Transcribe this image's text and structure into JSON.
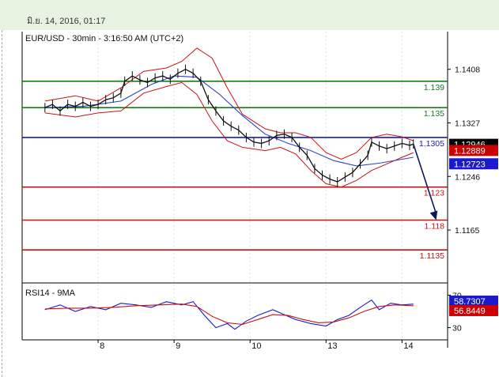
{
  "header": {
    "datestamp": "มิ.ย. 14, 2016, 01:17"
  },
  "chart_data": {
    "type": "candlestick",
    "title": "EUR/USD - 30min - 3:16:50 AM (UTC+2)",
    "price_axis": {
      "ylim": [
        1.1085,
        1.1465
      ],
      "ticks": [
        "1.1408",
        "1.1327",
        "1.1246",
        "1.1165"
      ]
    },
    "x_ticks": [
      {
        "label": "8",
        "x": 14
      },
      {
        "label": "9",
        "x": 34
      },
      {
        "label": "10",
        "x": 54
      },
      {
        "label": "13",
        "x": 74
      },
      {
        "label": "14",
        "x": 94
      }
    ],
    "xlim": [
      -6,
      106
    ],
    "price_series": [
      {
        "x": 0,
        "y": 1.135
      },
      {
        "x": 2,
        "y": 1.1355
      },
      {
        "x": 4,
        "y": 1.1345
      },
      {
        "x": 6,
        "y": 1.1355
      },
      {
        "x": 8,
        "y": 1.1352
      },
      {
        "x": 10,
        "y": 1.1358
      },
      {
        "x": 12,
        "y": 1.1352
      },
      {
        "x": 14,
        "y": 1.1355
      },
      {
        "x": 16,
        "y": 1.1362
      },
      {
        "x": 18,
        "y": 1.1365
      },
      {
        "x": 20,
        "y": 1.1372
      },
      {
        "x": 21,
        "y": 1.139
      },
      {
        "x": 23,
        "y": 1.1398
      },
      {
        "x": 25,
        "y": 1.1392
      },
      {
        "x": 27,
        "y": 1.1388
      },
      {
        "x": 29,
        "y": 1.1395
      },
      {
        "x": 31,
        "y": 1.1398
      },
      {
        "x": 33,
        "y": 1.1393
      },
      {
        "x": 35,
        "y": 1.1402
      },
      {
        "x": 37,
        "y": 1.1408
      },
      {
        "x": 39,
        "y": 1.1402
      },
      {
        "x": 41,
        "y": 1.139
      },
      {
        "x": 43,
        "y": 1.1362
      },
      {
        "x": 45,
        "y": 1.1345
      },
      {
        "x": 47,
        "y": 1.133
      },
      {
        "x": 49,
        "y": 1.1322
      },
      {
        "x": 51,
        "y": 1.1316
      },
      {
        "x": 53,
        "y": 1.1305
      },
      {
        "x": 55,
        "y": 1.1298
      },
      {
        "x": 57,
        "y": 1.1296
      },
      {
        "x": 59,
        "y": 1.13
      },
      {
        "x": 61,
        "y": 1.1308
      },
      {
        "x": 63,
        "y": 1.131
      },
      {
        "x": 65,
        "y": 1.1305
      },
      {
        "x": 67,
        "y": 1.129
      },
      {
        "x": 69,
        "y": 1.1278
      },
      {
        "x": 71,
        "y": 1.1258
      },
      {
        "x": 73,
        "y": 1.1248
      },
      {
        "x": 75,
        "y": 1.1242
      },
      {
        "x": 77,
        "y": 1.1238
      },
      {
        "x": 79,
        "y": 1.1245
      },
      {
        "x": 81,
        "y": 1.1252
      },
      {
        "x": 83,
        "y": 1.1265
      },
      {
        "x": 85,
        "y": 1.1278
      },
      {
        "x": 86,
        "y": 1.1298
      },
      {
        "x": 88,
        "y": 1.1292
      },
      {
        "x": 90,
        "y": 1.1288
      },
      {
        "x": 92,
        "y": 1.1292
      },
      {
        "x": 94,
        "y": 1.1296
      },
      {
        "x": 96,
        "y": 1.1293
      },
      {
        "x": 97,
        "y": 1.1295
      }
    ],
    "ma_series": [
      {
        "x": 0,
        "y": 1.135
      },
      {
        "x": 10,
        "y": 1.1352
      },
      {
        "x": 20,
        "y": 1.136
      },
      {
        "x": 28,
        "y": 1.1385
      },
      {
        "x": 34,
        "y": 1.1398
      },
      {
        "x": 40,
        "y": 1.1396
      },
      {
        "x": 46,
        "y": 1.137
      },
      {
        "x": 52,
        "y": 1.1338
      },
      {
        "x": 58,
        "y": 1.131
      },
      {
        "x": 64,
        "y": 1.1296
      },
      {
        "x": 70,
        "y": 1.1285
      },
      {
        "x": 76,
        "y": 1.127
      },
      {
        "x": 82,
        "y": 1.1262
      },
      {
        "x": 88,
        "y": 1.1266
      },
      {
        "x": 94,
        "y": 1.1272
      },
      {
        "x": 97,
        "y": 1.1275
      }
    ],
    "band_upper": [
      {
        "x": 0,
        "y": 1.136
      },
      {
        "x": 8,
        "y": 1.1368
      },
      {
        "x": 14,
        "y": 1.136
      },
      {
        "x": 20,
        "y": 1.138
      },
      {
        "x": 26,
        "y": 1.1405
      },
      {
        "x": 32,
        "y": 1.141
      },
      {
        "x": 36,
        "y": 1.142
      },
      {
        "x": 40,
        "y": 1.144
      },
      {
        "x": 44,
        "y": 1.1425
      },
      {
        "x": 48,
        "y": 1.138
      },
      {
        "x": 52,
        "y": 1.134
      },
      {
        "x": 58,
        "y": 1.1318
      },
      {
        "x": 62,
        "y": 1.1312
      },
      {
        "x": 66,
        "y": 1.1312
      },
      {
        "x": 70,
        "y": 1.1305
      },
      {
        "x": 74,
        "y": 1.1282
      },
      {
        "x": 78,
        "y": 1.1272
      },
      {
        "x": 82,
        "y": 1.1282
      },
      {
        "x": 86,
        "y": 1.1305
      },
      {
        "x": 90,
        "y": 1.131
      },
      {
        "x": 94,
        "y": 1.1306
      },
      {
        "x": 97,
        "y": 1.13
      }
    ],
    "band_lower": [
      {
        "x": 0,
        "y": 1.1342
      },
      {
        "x": 8,
        "y": 1.1336
      },
      {
        "x": 14,
        "y": 1.1342
      },
      {
        "x": 20,
        "y": 1.1345
      },
      {
        "x": 26,
        "y": 1.1372
      },
      {
        "x": 32,
        "y": 1.1382
      },
      {
        "x": 36,
        "y": 1.1388
      },
      {
        "x": 40,
        "y": 1.137
      },
      {
        "x": 44,
        "y": 1.133
      },
      {
        "x": 48,
        "y": 1.13
      },
      {
        "x": 52,
        "y": 1.129
      },
      {
        "x": 58,
        "y": 1.1285
      },
      {
        "x": 62,
        "y": 1.129
      },
      {
        "x": 66,
        "y": 1.128
      },
      {
        "x": 70,
        "y": 1.1255
      },
      {
        "x": 74,
        "y": 1.1235
      },
      {
        "x": 78,
        "y": 1.123
      },
      {
        "x": 82,
        "y": 1.124
      },
      {
        "x": 86,
        "y": 1.1255
      },
      {
        "x": 90,
        "y": 1.1265
      },
      {
        "x": 94,
        "y": 1.1275
      },
      {
        "x": 97,
        "y": 1.1282
      }
    ],
    "levels": [
      {
        "label": "1.139",
        "price": 1.139,
        "color": "#1a7a1a"
      },
      {
        "label": "1.135",
        "price": 1.135,
        "color": "#1a7a1a"
      },
      {
        "label": "1.1305",
        "price": 1.1305,
        "color": "#1a1ab0"
      },
      {
        "label": "1.123",
        "price": 1.123,
        "color": "#cc1111"
      },
      {
        "label": "1.118",
        "price": 1.118,
        "color": "#cc1111"
      },
      {
        "label": "1.1135",
        "price": 1.1135,
        "color": "#cc1111"
      }
    ],
    "price_badges": [
      {
        "text": "1.12946",
        "price": 1.12946,
        "bg": "#000000",
        "fg": "#ffffff"
      },
      {
        "text": "1.12889",
        "price": 1.12889,
        "bg": "#cc0000",
        "fg": "#ffffff"
      },
      {
        "text": "1.12723",
        "price": 1.12723,
        "bg": "#1a1acc",
        "fg": "#ffffff"
      }
    ],
    "forecast_arrow": {
      "from": {
        "x": 97,
        "y": 1.1295
      },
      "to": {
        "x": 103,
        "y": 1.118
      }
    },
    "rsi": {
      "title": "RSI14 - 9MA",
      "ylim": [
        15,
        85
      ],
      "ticks": [
        "70",
        "30"
      ],
      "rsi_series": [
        {
          "x": 0,
          "y": 52
        },
        {
          "x": 4,
          "y": 58
        },
        {
          "x": 8,
          "y": 50
        },
        {
          "x": 12,
          "y": 56
        },
        {
          "x": 16,
          "y": 52
        },
        {
          "x": 20,
          "y": 60
        },
        {
          "x": 24,
          "y": 58
        },
        {
          "x": 28,
          "y": 55
        },
        {
          "x": 32,
          "y": 62
        },
        {
          "x": 36,
          "y": 58
        },
        {
          "x": 39,
          "y": 62
        },
        {
          "x": 42,
          "y": 45
        },
        {
          "x": 45,
          "y": 30
        },
        {
          "x": 48,
          "y": 35
        },
        {
          "x": 50,
          "y": 28
        },
        {
          "x": 53,
          "y": 38
        },
        {
          "x": 56,
          "y": 45
        },
        {
          "x": 60,
          "y": 52
        },
        {
          "x": 63,
          "y": 46
        },
        {
          "x": 66,
          "y": 40
        },
        {
          "x": 70,
          "y": 35
        },
        {
          "x": 74,
          "y": 32
        },
        {
          "x": 77,
          "y": 40
        },
        {
          "x": 80,
          "y": 45
        },
        {
          "x": 83,
          "y": 55
        },
        {
          "x": 86,
          "y": 64
        },
        {
          "x": 88,
          "y": 52
        },
        {
          "x": 91,
          "y": 60
        },
        {
          "x": 94,
          "y": 58
        },
        {
          "x": 97,
          "y": 59
        }
      ],
      "ma_series": [
        {
          "x": 0,
          "y": 53
        },
        {
          "x": 6,
          "y": 54
        },
        {
          "x": 12,
          "y": 54
        },
        {
          "x": 18,
          "y": 55
        },
        {
          "x": 24,
          "y": 57
        },
        {
          "x": 30,
          "y": 58
        },
        {
          "x": 36,
          "y": 59
        },
        {
          "x": 40,
          "y": 56
        },
        {
          "x": 44,
          "y": 44
        },
        {
          "x": 48,
          "y": 36
        },
        {
          "x": 52,
          "y": 34
        },
        {
          "x": 56,
          "y": 40
        },
        {
          "x": 60,
          "y": 46
        },
        {
          "x": 64,
          "y": 45
        },
        {
          "x": 68,
          "y": 40
        },
        {
          "x": 72,
          "y": 36
        },
        {
          "x": 76,
          "y": 37
        },
        {
          "x": 80,
          "y": 42
        },
        {
          "x": 84,
          "y": 50
        },
        {
          "x": 88,
          "y": 56
        },
        {
          "x": 92,
          "y": 58
        },
        {
          "x": 97,
          "y": 57
        }
      ],
      "badges": [
        {
          "text": "58.7307",
          "value": 58.7307,
          "bg": "#1a1acc",
          "fg": "#ffffff"
        },
        {
          "text": "56.8449",
          "value": 56.8449,
          "bg": "#cc0000",
          "fg": "#ffffff"
        }
      ]
    },
    "colors": {
      "price": "#111111",
      "band": "#cc1111",
      "ma": "#2a44c8",
      "rsi_line": "#1a1acc",
      "rsi_ma": "#cc1111",
      "arrow": "#0a1a5a",
      "axis": "#000000",
      "grid": "#dddddd"
    }
  }
}
